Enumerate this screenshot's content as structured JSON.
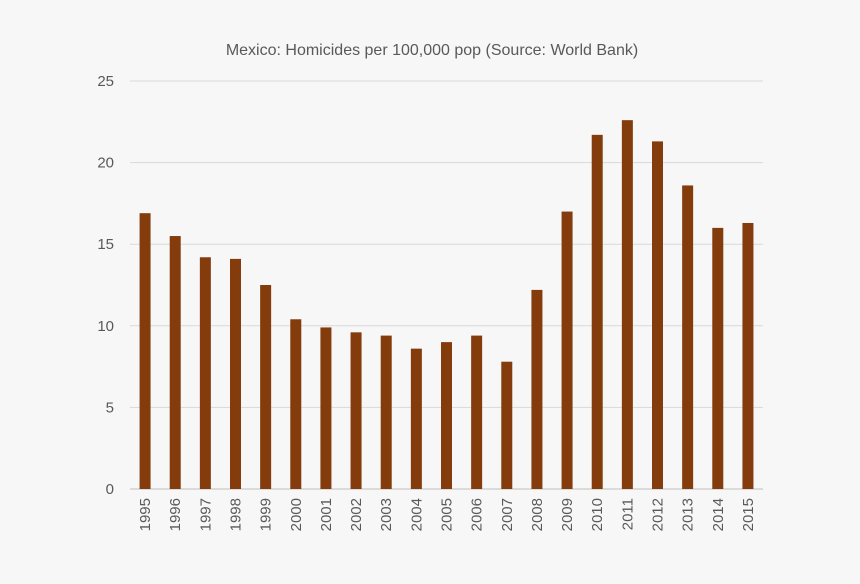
{
  "chart_data": {
    "type": "bar",
    "title": "Mexico: Homicides per 100,000 pop (Source: World Bank)",
    "xlabel": "",
    "ylabel": "",
    "categories": [
      "1995",
      "1996",
      "1997",
      "1998",
      "1999",
      "2000",
      "2001",
      "2002",
      "2003",
      "2004",
      "2005",
      "2006",
      "2007",
      "2008",
      "2009",
      "2010",
      "2011",
      "2012",
      "2013",
      "2014",
      "2015"
    ],
    "values": [
      16.9,
      15.5,
      14.2,
      14.1,
      12.5,
      10.4,
      9.9,
      9.6,
      9.4,
      8.6,
      9.0,
      9.4,
      7.8,
      12.2,
      17.0,
      21.7,
      22.6,
      21.3,
      18.6,
      16.0,
      16.3
    ],
    "ylim": [
      0,
      25
    ],
    "yticks": [
      "0",
      "5",
      "10",
      "15",
      "20",
      "25"
    ],
    "grid": true,
    "legend": "none",
    "bar_color": "#843c0c"
  }
}
